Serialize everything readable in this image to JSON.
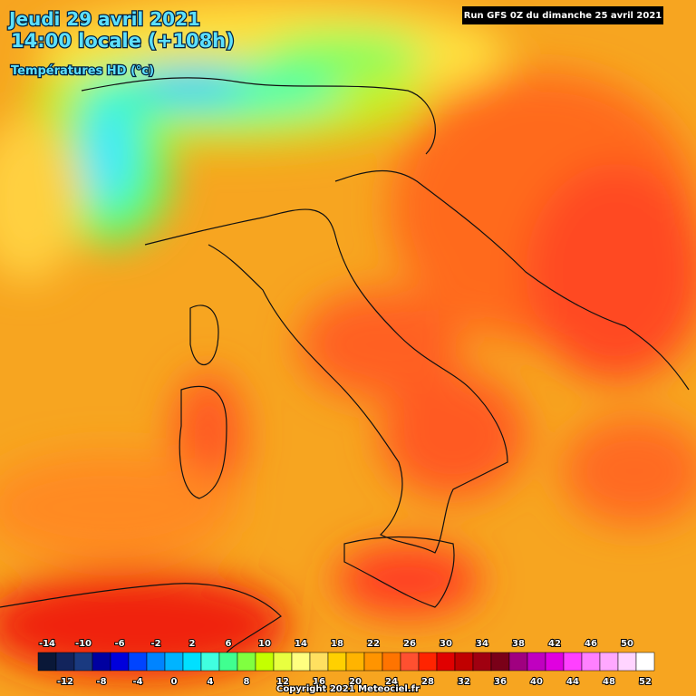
{
  "header": {
    "date": "Jeudi 29 avril 2021",
    "time": "14:00 locale (+108h)",
    "parameter": "Températures HD (°c)",
    "run": "Run GFS 0Z du dimanche 25 avril 2021"
  },
  "legend": {
    "values": [
      -14,
      -12,
      -10,
      -8,
      -6,
      -4,
      -2,
      0,
      2,
      4,
      6,
      8,
      10,
      12,
      14,
      16,
      18,
      20,
      22,
      24,
      26,
      28,
      30,
      32,
      34,
      36,
      38,
      40,
      42,
      44,
      46,
      48,
      50,
      52
    ],
    "colors": [
      "#0a1838",
      "#12245c",
      "#1a3a80",
      "#0000a0",
      "#0000dc",
      "#0044ff",
      "#0084ff",
      "#00b4ff",
      "#00e0ff",
      "#40ffe0",
      "#40ff90",
      "#80ff40",
      "#c4ff00",
      "#e8ff40",
      "#ffff80",
      "#ffe060",
      "#ffd000",
      "#ffb400",
      "#ff9400",
      "#ff7400",
      "#ff5030",
      "#ff2400",
      "#e00000",
      "#c00000",
      "#a00010",
      "#7a0018",
      "#a00080",
      "#c000c0",
      "#e000e0",
      "#ff40ff",
      "#ff80ff",
      "#ffa8ff",
      "#ffd4ff",
      "#ffffff"
    ]
  },
  "footer": {
    "copyright": "Copyright 2021 Meteociel.fr"
  }
}
